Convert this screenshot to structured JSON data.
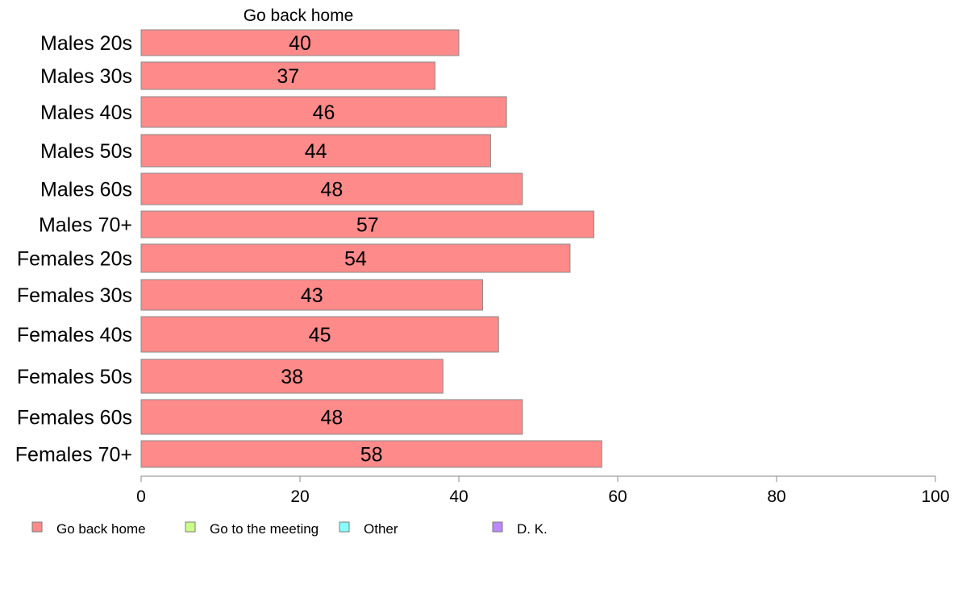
{
  "chart_data": {
    "type": "bar",
    "orientation": "horizontal",
    "title": "Go back home",
    "categories": [
      "Males 20s",
      "Males 30s",
      "Males 40s",
      "Males 50s",
      "Males 60s",
      "Males 70+",
      "Females 20s",
      "Females 30s",
      "Females 40s",
      "Females 50s",
      "Females 60s",
      "Females 70+"
    ],
    "series": [
      {
        "name": "Go back home",
        "color": "#FF8A8A",
        "values": [
          40,
          37,
          46,
          44,
          48,
          57,
          54,
          43,
          45,
          38,
          48,
          58
        ]
      }
    ],
    "xlim": [
      0,
      100
    ],
    "xticks": [
      0,
      20,
      40,
      60,
      80,
      100
    ],
    "grid": false,
    "legend_position": "bottom",
    "legend": [
      {
        "label": "Go back home",
        "color": "#FF8A8A"
      },
      {
        "label": "Go to the meeting",
        "color": "#CCFF88"
      },
      {
        "label": "Other",
        "color": "#88FFFF"
      },
      {
        "label": "D. K.",
        "color": "#BB88FF"
      }
    ]
  }
}
